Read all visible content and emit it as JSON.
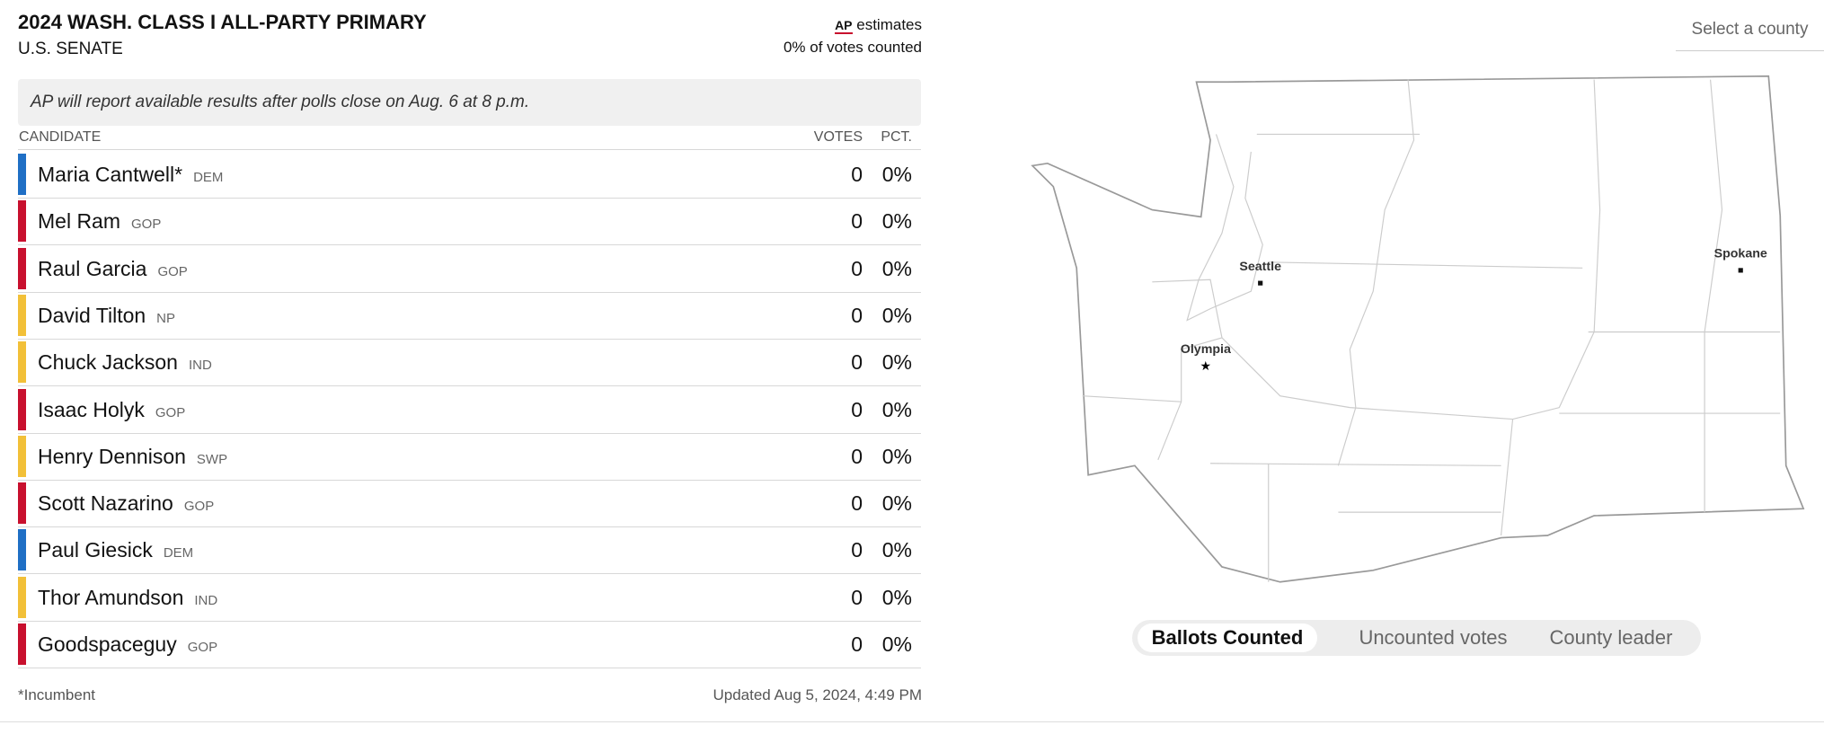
{
  "header": {
    "title": "2024 WASH. CLASS I ALL-PARTY PRIMARY",
    "subtitle": "U.S. SENATE",
    "source": "AP",
    "source_note": "estimates",
    "counted": "0% of votes counted"
  },
  "notice": "AP will report available results after polls close on Aug. 6 at 8 p.m.",
  "table": {
    "columns": [
      "CANDIDATE",
      "VOTES",
      "PCT."
    ],
    "rows": [
      {
        "name": "Maria Cantwell*",
        "party": "DEM",
        "votes": 0,
        "pct": "0%",
        "color": "#1f6fc5"
      },
      {
        "name": "Mel Ram",
        "party": "GOP",
        "votes": 0,
        "pct": "0%",
        "color": "#c8102e"
      },
      {
        "name": "Raul Garcia",
        "party": "GOP",
        "votes": 0,
        "pct": "0%",
        "color": "#c8102e"
      },
      {
        "name": "David Tilton",
        "party": "NP",
        "votes": 0,
        "pct": "0%",
        "color": "#f2c038"
      },
      {
        "name": "Chuck Jackson",
        "party": "IND",
        "votes": 0,
        "pct": "0%",
        "color": "#f2c038"
      },
      {
        "name": "Isaac Holyk",
        "party": "GOP",
        "votes": 0,
        "pct": "0%",
        "color": "#c8102e"
      },
      {
        "name": "Henry Dennison",
        "party": "SWP",
        "votes": 0,
        "pct": "0%",
        "color": "#f2c038"
      },
      {
        "name": "Scott Nazarino",
        "party": "GOP",
        "votes": 0,
        "pct": "0%",
        "color": "#c8102e"
      },
      {
        "name": "Paul Giesick",
        "party": "DEM",
        "votes": 0,
        "pct": "0%",
        "color": "#1f6fc5"
      },
      {
        "name": "Thor Amundson",
        "party": "IND",
        "votes": 0,
        "pct": "0%",
        "color": "#f2c038"
      },
      {
        "name": "Goodspaceguy",
        "party": "GOP",
        "votes": 0,
        "pct": "0%",
        "color": "#c8102e"
      }
    ]
  },
  "footer": {
    "note": "*Incumbent",
    "updated": "Updated Aug 5, 2024, 4:49 PM"
  },
  "county_select": "Select a county",
  "map": {
    "cities": [
      {
        "name": "Seattle"
      },
      {
        "name": "Spokane"
      },
      {
        "name": "Olympia"
      }
    ]
  },
  "toggle": {
    "options": [
      "Ballots Counted",
      "Uncounted votes",
      "County leader"
    ],
    "active": 0
  }
}
